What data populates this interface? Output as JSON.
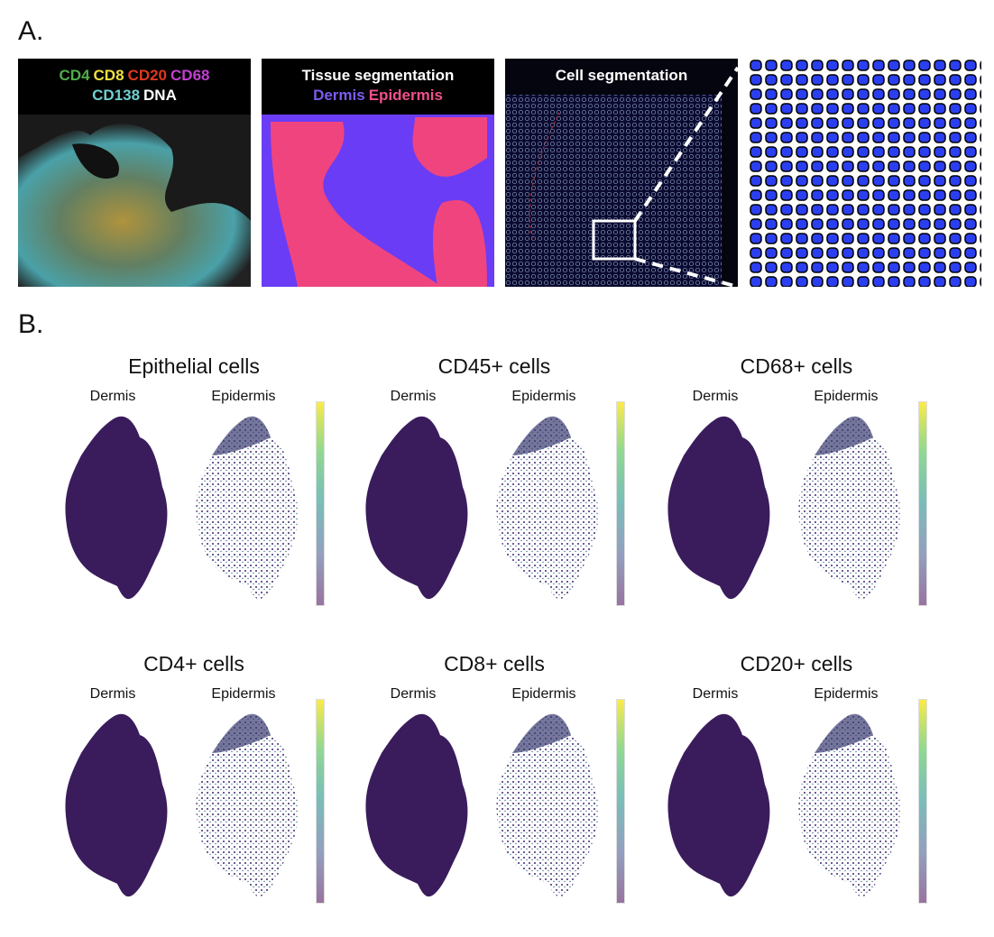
{
  "panel_a": {
    "label": "A.",
    "images": [
      {
        "header": [
          {
            "text": "CD4",
            "color": "#4fae4a"
          },
          {
            "text": "CD8",
            "color": "#f0e040"
          },
          {
            "text": "CD20",
            "color": "#e0381e"
          },
          {
            "text": "CD68",
            "color": "#c040d0"
          }
        ],
        "header2": [
          {
            "text": "CD138",
            "color": "#70d0d0"
          },
          {
            "text": "DNA",
            "color": "#ffffff"
          }
        ]
      },
      {
        "header": [
          {
            "text": "Tissue segmentation",
            "color": "#ffffff"
          }
        ],
        "header2": [
          {
            "text": "Dermis",
            "color": "#7b5cf0"
          },
          {
            "text": "Epidermis",
            "color": "#f0508a"
          }
        ]
      },
      {
        "header": [
          {
            "text": "Cell segmentation",
            "color": "#ffffff"
          }
        ],
        "header2": []
      },
      {
        "header": [],
        "header2": []
      }
    ],
    "colors": {
      "dermis": "#6a3cf5",
      "epidermis": "#f0447f",
      "cell": "#2b3ff0"
    }
  },
  "panel_b": {
    "label": "B.",
    "subtitle_left": "Dermis",
    "subtitle_right": "Epidermis",
    "groups": [
      {
        "title": "Epithelial cells"
      },
      {
        "title": "CD45+ cells"
      },
      {
        "title": "CD68+ cells"
      },
      {
        "title": "CD4+ cells"
      },
      {
        "title": "CD8+ cells"
      },
      {
        "title": "CD20+ cells"
      }
    ],
    "colormap": [
      "#440154",
      "#3b528b",
      "#21918c",
      "#5ec962",
      "#fde725"
    ]
  }
}
